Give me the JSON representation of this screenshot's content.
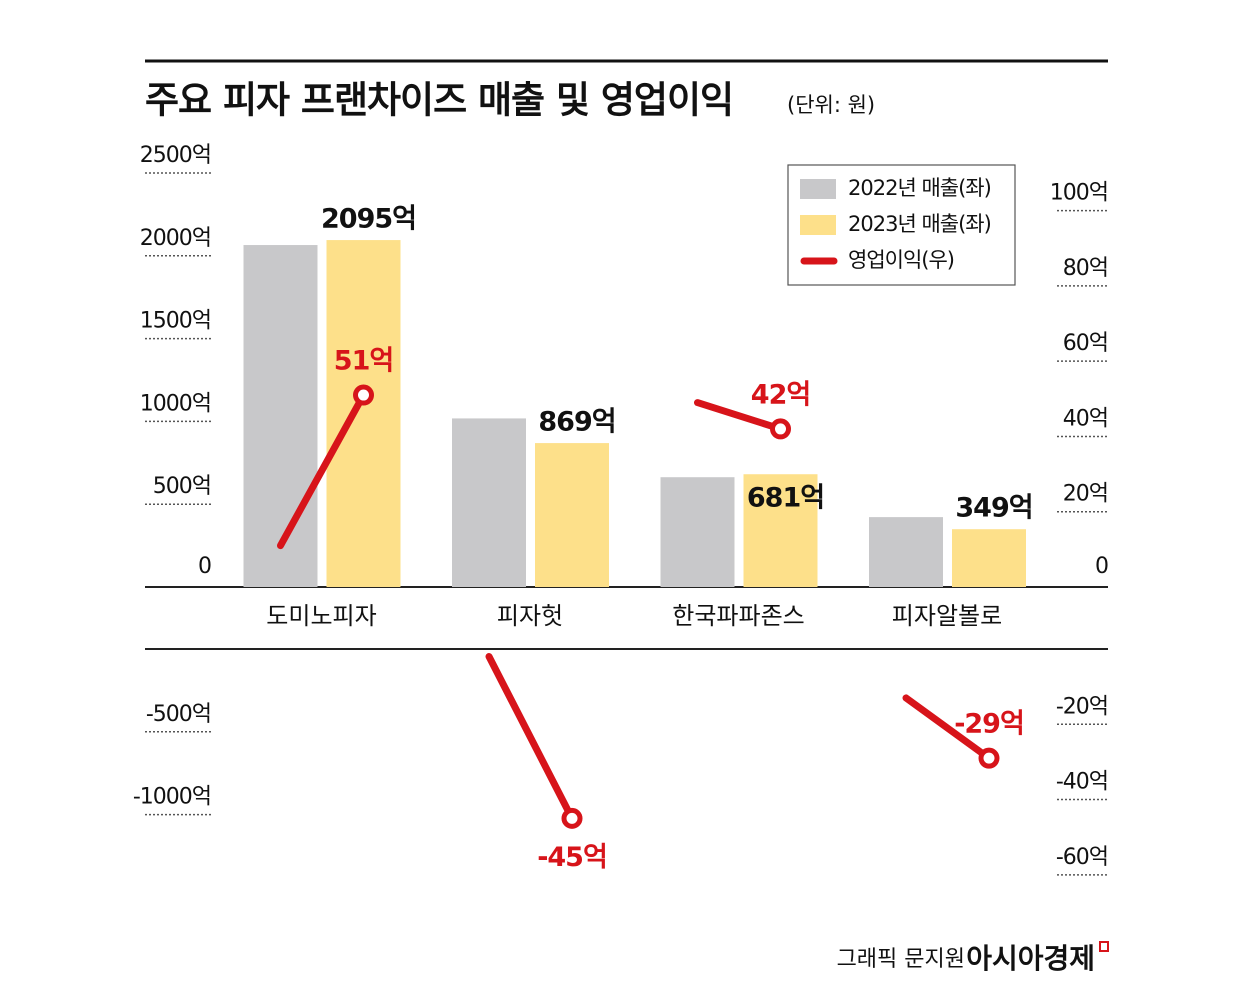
{
  "chart_data": {
    "type": "bar-line",
    "title": "주요 피자 프랜차이즈 매출 및 영업이익",
    "subtitle": "(단위: 원)",
    "categories": [
      "도미노피자",
      "피자헛",
      "한국파파존스",
      "피자알볼로"
    ],
    "series": [
      {
        "name": "2022년 매출(좌)",
        "color": "#c8c8ca",
        "values": [
          2065,
          1018,
          663,
          422
        ]
      },
      {
        "name": "2023년 매출(좌)",
        "color": "#fde08a",
        "values": [
          2095,
          869,
          681,
          349
        ],
        "value_labels": [
          "2095억",
          "869억",
          "681억",
          "349억"
        ]
      },
      {
        "name": "영업이익(우)",
        "color": "#d7141a",
        "axis": "y2",
        "values_2022": [
          11,
          -2,
          49,
          -13
        ],
        "values_2023": [
          51,
          -45,
          42,
          -29
        ],
        "value_labels": [
          "51억",
          "-45억",
          "42억",
          "-29억"
        ]
      }
    ],
    "ylim": [
      -1100,
      2500
    ],
    "yticks": [
      {
        "value": 2500,
        "label": "2500억"
      },
      {
        "value": 2000,
        "label": "2000억"
      },
      {
        "value": 1500,
        "label": "1500억"
      },
      {
        "value": 1000,
        "label": "1000억"
      },
      {
        "value": 500,
        "label": "500억"
      },
      0,
      {
        "value": -500,
        "label": "-500억"
      },
      {
        "value": -1000,
        "label": "-1000억"
      }
    ],
    "y2lim": [
      -62,
      110
    ],
    "y2ticks": [
      {
        "value": 100,
        "label": "100억"
      },
      {
        "value": 80,
        "label": "80억"
      },
      {
        "value": 60,
        "label": "60억"
      },
      {
        "value": 40,
        "label": "40억"
      },
      {
        "value": 20,
        "label": "20억"
      },
      0,
      {
        "value": -20,
        "label": "-20억"
      },
      {
        "value": -40,
        "label": "-40억"
      },
      {
        "value": -60,
        "label": "-60억"
      }
    ],
    "legend": "top-right"
  },
  "credit": {
    "graphic": "그래픽 문지원",
    "source": "아시아경제"
  }
}
